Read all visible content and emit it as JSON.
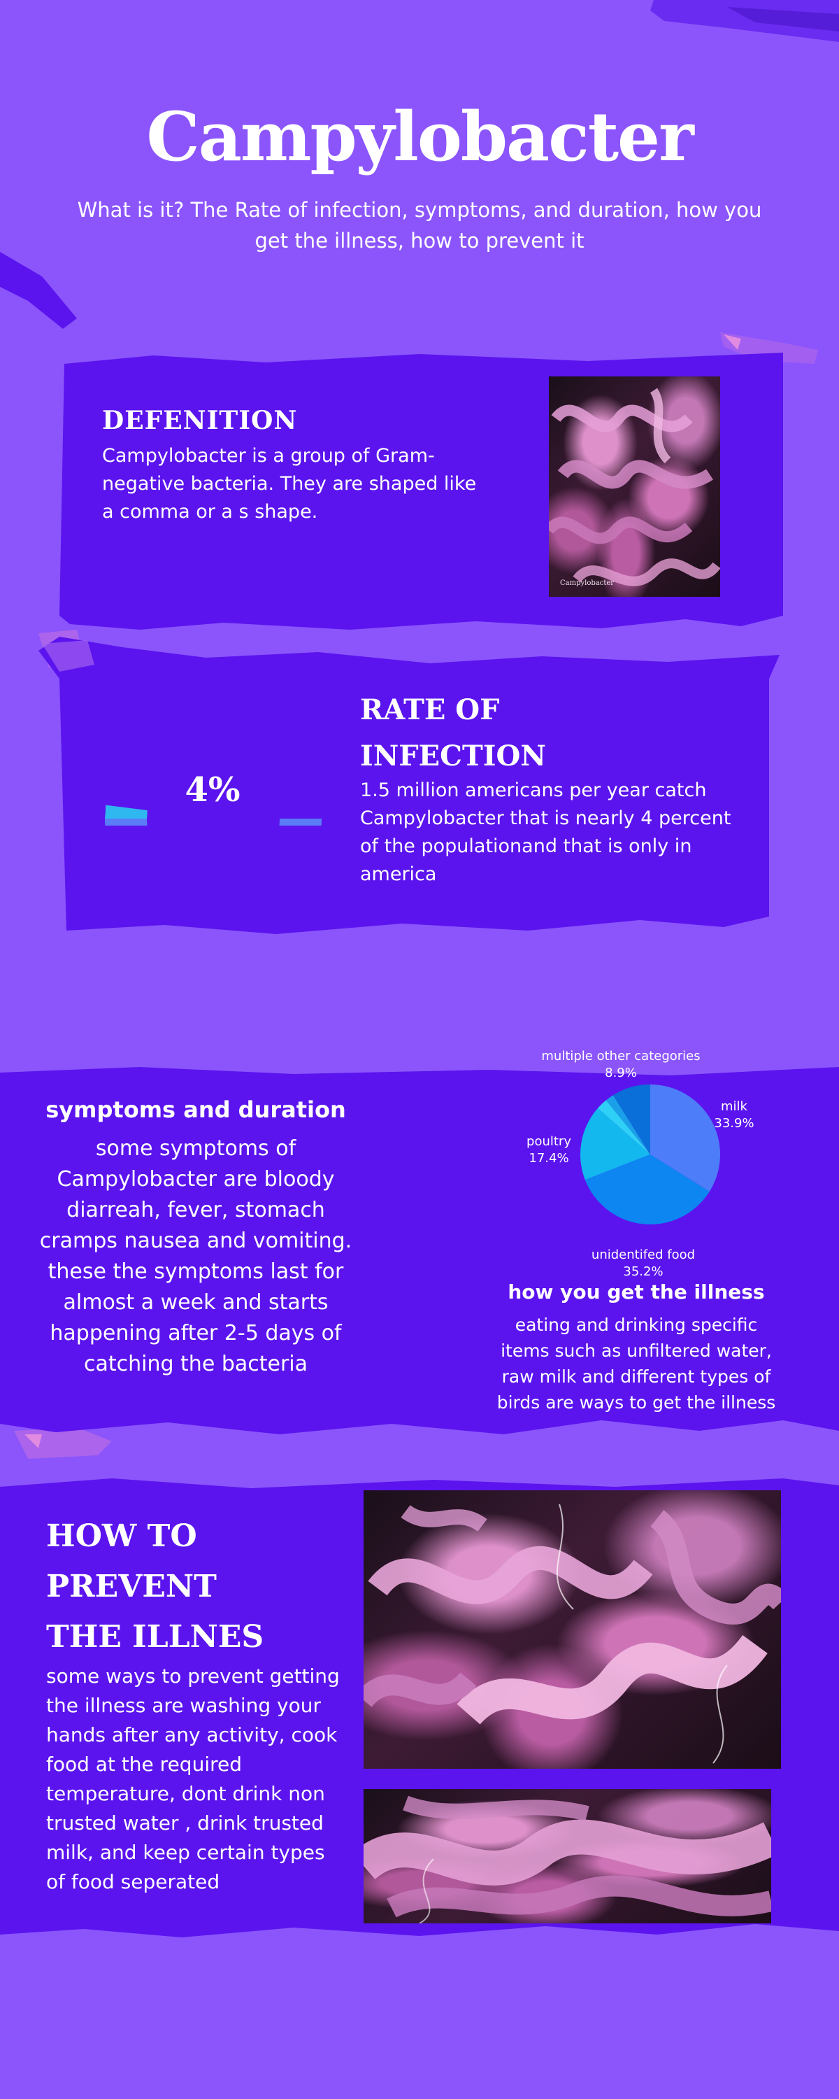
{
  "header": {
    "title": "Campylobacter",
    "subtitle": "What is it? The Rate of infection, symptoms, and duration, how you get the illness, how to prevent it"
  },
  "definition": {
    "heading": "DEFENITION",
    "text": "Campylobacter is a group of Gram-negative bacteria. They are shaped  like a comma or a s shape.",
    "image_caption": "Campylobacter"
  },
  "rate": {
    "heading_line1": "RATE OF",
    "heading_line2": "INFECTION",
    "gauge_label": "4%",
    "gauge_percent": 4,
    "text": "1.5 million americans per year catch Campylobacter that is nearly 4 percent of the populationand that is only in america"
  },
  "symptoms": {
    "heading": "symptoms and duration",
    "text": "some symptoms of Campylobacter are bloody diarreah, fever, stomach cramps nausea and vomiting. these the symptoms last for almost a week  and starts happening after 2-5 days of catching the bacteria"
  },
  "chart_data": {
    "type": "pie",
    "slices": [
      {
        "name": "milk",
        "value": 33.9,
        "label": "33.9%",
        "color": "#4d7df9"
      },
      {
        "name": "unidentifed food",
        "value": 35.2,
        "label": "35.2%",
        "color": "#0d86f2"
      },
      {
        "name": "poultry",
        "value": 17.4,
        "label": "17.4%",
        "color": "#12b8ee"
      },
      {
        "name": "multiple other categories",
        "value": 8.9,
        "label": "8.9%",
        "color": "#0a6fd8"
      },
      {
        "name": "",
        "value": 2.6,
        "label": "",
        "color": "#2fd0f5"
      },
      {
        "name": "",
        "value": 2.0,
        "label": "",
        "color": "#1aa0e8"
      }
    ],
    "title": "",
    "legend": "none"
  },
  "illness": {
    "heading": "how you get the illness",
    "text": "eating and drinking specific items such as unfiltered water, raw milk and different types of birds are ways to get the illness"
  },
  "prevent": {
    "heading_line1": "HOW TO",
    "heading_line2": "PREVENT",
    "heading_line3": "THE ILLNES",
    "text": "some ways to prevent getting the illness are washing your hands after any activity, cook food at the required temperature, dont drink non trusted water , drink trusted milk, and keep certain types of food seperated"
  },
  "colors": {
    "background": "#8b55fb",
    "panel": "#5b14ee",
    "gauge": "#5b7cf7",
    "gauge_fill": "#2fb8f0"
  }
}
